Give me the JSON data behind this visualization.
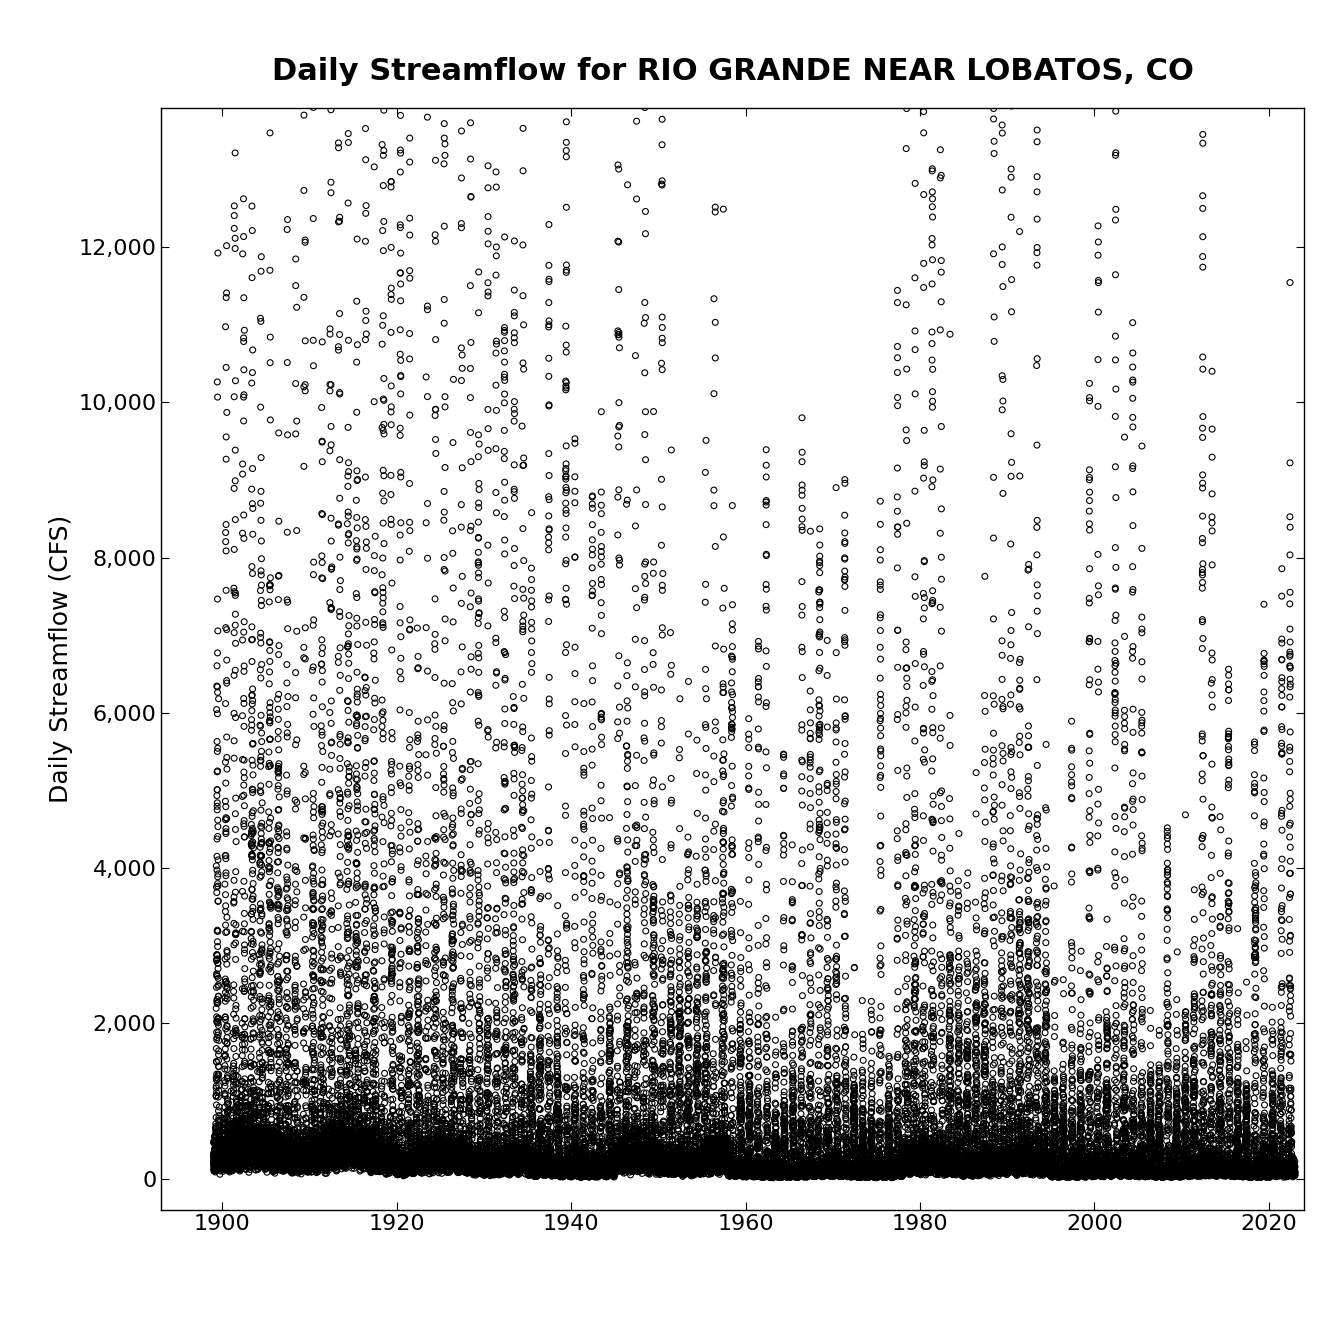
{
  "title": "Daily Streamflow for RIO GRANDE NEAR LOBATOS, CO",
  "xlabel": "",
  "ylabel": "Daily Streamflow (CFS)",
  "xlim": [
    1893,
    2024
  ],
  "ylim": [
    -400,
    13800
  ],
  "xticks": [
    1900,
    1920,
    1940,
    1960,
    1980,
    2000,
    2020
  ],
  "yticks": [
    0,
    2000,
    4000,
    6000,
    8000,
    10000,
    12000
  ],
  "marker": "o",
  "marker_size": 18,
  "marker_color": "black",
  "marker_facecolor": "none",
  "marker_linewidth": 0.8,
  "title_fontsize": 22,
  "label_fontsize": 18,
  "tick_fontsize": 16,
  "seed": 42,
  "start_year": 1899,
  "end_year": 2022,
  "background_color": "#ffffff"
}
